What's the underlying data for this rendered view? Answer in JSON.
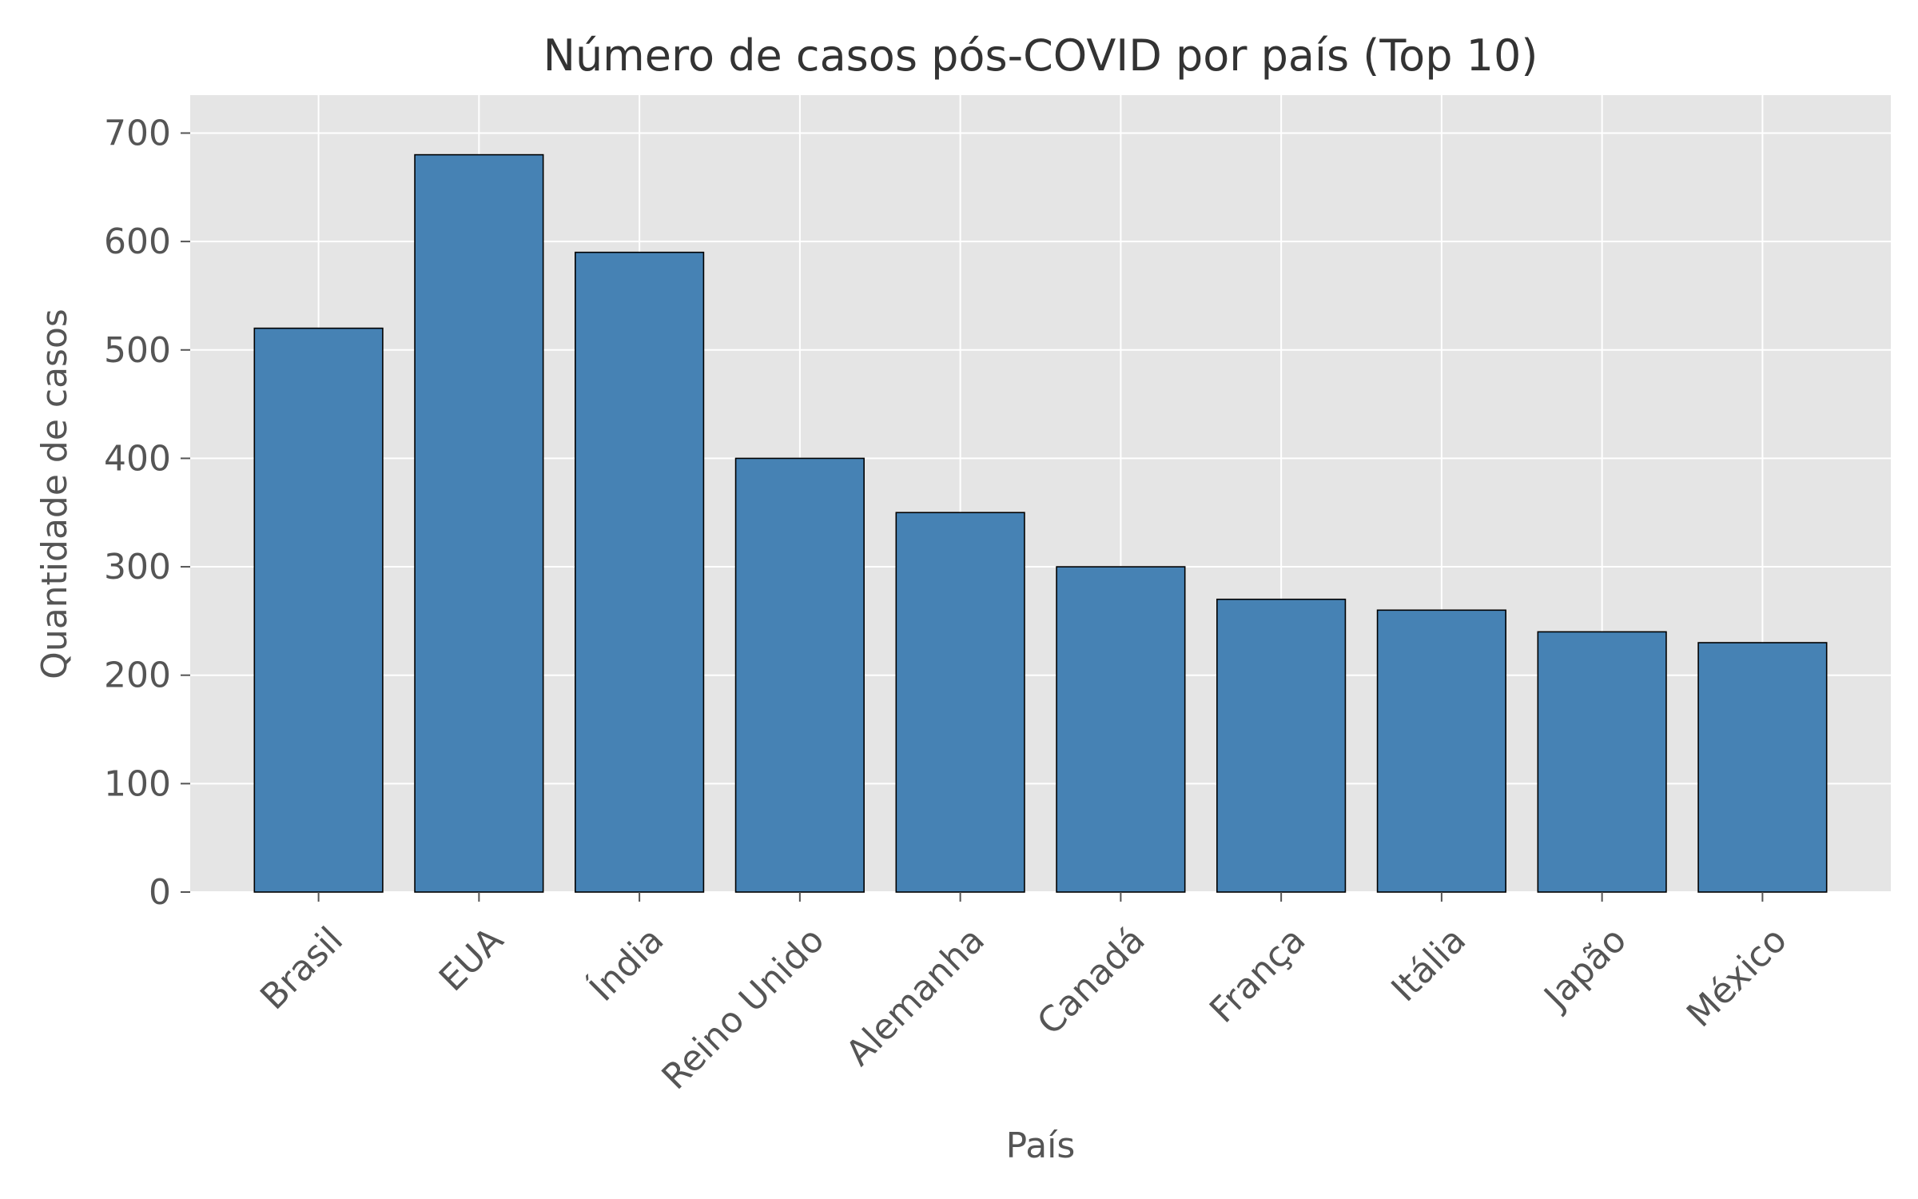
{
  "chart_data": {
    "type": "bar",
    "title": "Número de casos pós-COVID por país (Top 10)",
    "xlabel": "País",
    "ylabel": "Quantidade de casos",
    "categories": [
      "Brasil",
      "EUA",
      "Índia",
      "Reino Unido",
      "Alemanha",
      "Canadá",
      "França",
      "Itália",
      "Japão",
      "México"
    ],
    "values": [
      520,
      680,
      590,
      400,
      350,
      300,
      270,
      260,
      240,
      230
    ],
    "ylim": [
      0,
      735
    ],
    "yticks": [
      0,
      100,
      200,
      300,
      400,
      500,
      600,
      700
    ],
    "xtick_rotation_deg": 45,
    "grid": true,
    "legend": "none",
    "colors": {
      "bar": "#4682b4",
      "bar_edge": "#000000",
      "plot_background": "#e5e5e5",
      "grid": "#ffffff",
      "text": "#555555",
      "title": "#333333"
    }
  }
}
